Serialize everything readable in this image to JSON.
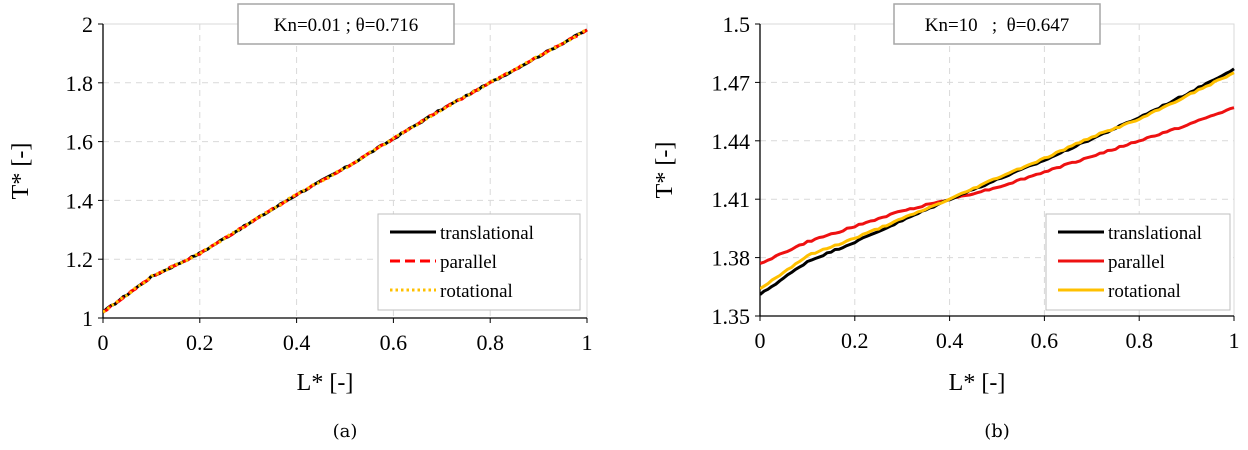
{
  "chart_data": [
    {
      "type": "line",
      "annotation": "Kn=0.01 ; θ=0.716",
      "xlabel": "L* [-]",
      "ylabel": "T* [-]",
      "caption": "(a)",
      "xlim": [
        0,
        1
      ],
      "ylim": [
        1,
        2
      ],
      "xticks": [
        0,
        0.2,
        0.4,
        0.6,
        0.8,
        1
      ],
      "xtick_labels": [
        "0",
        "0.2",
        "0.4",
        "0.6",
        "0.8",
        "1"
      ],
      "yticks": [
        1,
        1.2,
        1.4,
        1.6,
        1.8,
        2
      ],
      "ytick_labels": [
        "1",
        "1.2",
        "1.4",
        "1.6",
        "1.8",
        "2"
      ],
      "grid": true,
      "legend_position": "bottom-right",
      "x": [
        0,
        0.1,
        0.2,
        0.3,
        0.4,
        0.5,
        0.6,
        0.7,
        0.8,
        0.9,
        1.0
      ],
      "series": [
        {
          "name": "translational",
          "color": "#000000",
          "dash": "solid",
          "values": [
            1.02,
            1.14,
            1.22,
            1.32,
            1.42,
            1.51,
            1.61,
            1.71,
            1.8,
            1.89,
            1.98
          ]
        },
        {
          "name": "parallel",
          "color": "#ff0000",
          "dash": "dashed",
          "values": [
            1.02,
            1.14,
            1.22,
            1.32,
            1.42,
            1.51,
            1.61,
            1.71,
            1.8,
            1.89,
            1.98
          ]
        },
        {
          "name": "rotational",
          "color": "#ffc000",
          "dash": "dotted",
          "values": [
            1.02,
            1.14,
            1.22,
            1.32,
            1.42,
            1.51,
            1.61,
            1.71,
            1.8,
            1.89,
            1.98
          ]
        }
      ]
    },
    {
      "type": "line",
      "annotation": "Kn=10   ;  θ=0.647",
      "xlabel": "L* [-]",
      "ylabel": "T* [-]",
      "caption": "(b)",
      "xlim": [
        0,
        1
      ],
      "ylim": [
        1.35,
        1.5
      ],
      "xticks": [
        0,
        0.2,
        0.4,
        0.6,
        0.8,
        1
      ],
      "xtick_labels": [
        "0",
        "0.2",
        "0.4",
        "0.6",
        "0.8",
        "1"
      ],
      "yticks": [
        1.35,
        1.38,
        1.41,
        1.44,
        1.47,
        1.5
      ],
      "ytick_labels": [
        "1.35",
        "1.38",
        "1.41",
        "1.44",
        "1.47",
        "1.5"
      ],
      "grid": true,
      "legend_position": "bottom-right",
      "x": [
        0,
        0.1,
        0.2,
        0.3,
        0.4,
        0.5,
        0.6,
        0.7,
        0.8,
        0.9,
        1.0
      ],
      "series": [
        {
          "name": "translational",
          "color": "#000000",
          "dash": "solid",
          "values": [
            1.361,
            1.378,
            1.388,
            1.399,
            1.41,
            1.42,
            1.43,
            1.441,
            1.452,
            1.464,
            1.477
          ]
        },
        {
          "name": "parallel",
          "color": "#ee1111",
          "dash": "solid",
          "values": [
            1.377,
            1.388,
            1.396,
            1.404,
            1.41,
            1.416,
            1.424,
            1.432,
            1.44,
            1.448,
            1.457
          ]
        },
        {
          "name": "rotational",
          "color": "#ffc000",
          "dash": "solid",
          "values": [
            1.364,
            1.381,
            1.39,
            1.4,
            1.41,
            1.421,
            1.431,
            1.442,
            1.451,
            1.463,
            1.475
          ]
        }
      ]
    }
  ]
}
